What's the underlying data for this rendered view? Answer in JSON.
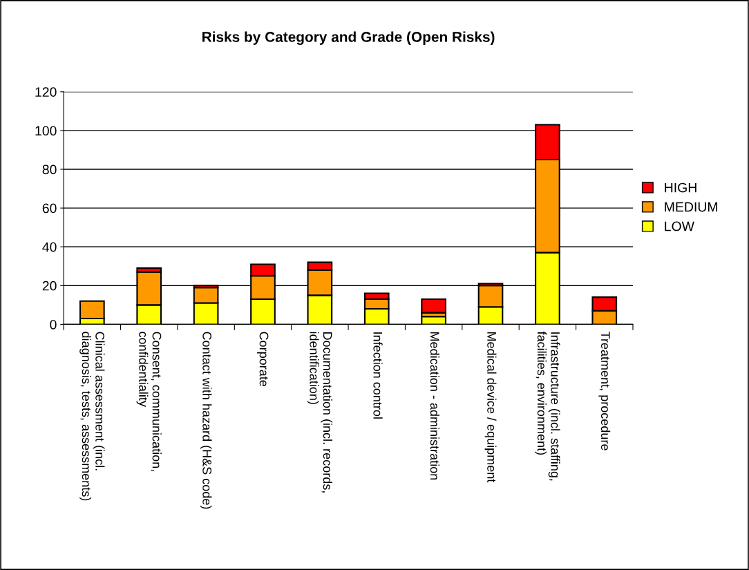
{
  "chart_data": {
    "type": "bar",
    "title": "Risks by Category and Grade (Open Risks)",
    "stacked": true,
    "categories": [
      "Clinical assessment (incl. diagnosis, tests, assessments)",
      "Consent, communication, confidentiality",
      "Contact with hazard (H&S code)",
      "Corporate",
      "Documentation (incl. records, identification)",
      "Infection control",
      "Medication - administration",
      "Medical device / equipment",
      "Infrastructure (incl. staffing, facilities, environment)",
      "Treatment, procedure"
    ],
    "series": [
      {
        "name": "LOW",
        "color": "#ffff00",
        "values": [
          3,
          10,
          11,
          13,
          15,
          8,
          4,
          9,
          37,
          0
        ]
      },
      {
        "name": "MEDIUM",
        "color": "#ff9900",
        "values": [
          9,
          17,
          8,
          12,
          13,
          5,
          2,
          11,
          48,
          7
        ]
      },
      {
        "name": "HIGH",
        "color": "#ff0000",
        "values": [
          0,
          2,
          1,
          6,
          4,
          3,
          7,
          1,
          18,
          7
        ]
      }
    ],
    "ylim": [
      0,
      120
    ],
    "yticks": [
      0,
      20,
      40,
      60,
      80,
      100,
      120
    ],
    "grid": "y",
    "legend": "right"
  }
}
